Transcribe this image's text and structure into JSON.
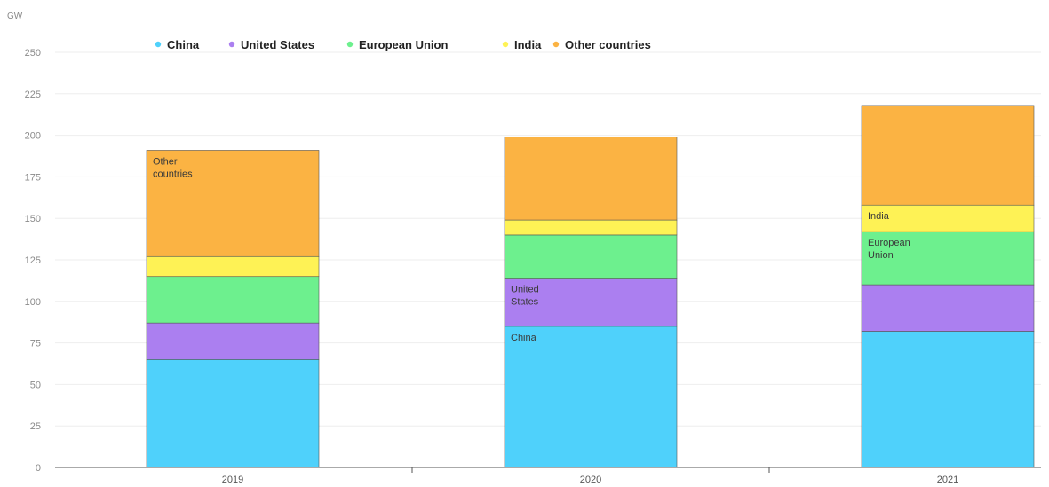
{
  "chart_data": {
    "type": "bar",
    "stacked": true,
    "unit": "GW",
    "categories": [
      "2019",
      "2020",
      "2021"
    ],
    "series": [
      {
        "name": "China",
        "color": "#4fd1fb",
        "values": [
          65,
          85,
          82
        ]
      },
      {
        "name": "United States",
        "color": "#ab7ff0",
        "values": [
          22,
          29,
          28
        ]
      },
      {
        "name": "European Union",
        "color": "#6df08e",
        "values": [
          28,
          26,
          32
        ]
      },
      {
        "name": "India",
        "color": "#fef255",
        "values": [
          12,
          9,
          16
        ]
      },
      {
        "name": "Other countries",
        "color": "#fbb343",
        "values": [
          64,
          50,
          60
        ]
      }
    ],
    "ylim": [
      0,
      250
    ],
    "yticks": [
      0,
      25,
      50,
      75,
      100,
      125,
      150,
      175,
      200,
      225,
      250
    ],
    "legend_position": "top-left",
    "grid": true,
    "annotations": [
      {
        "category": "2019",
        "series": "Other countries",
        "lines": [
          "Other",
          "countries"
        ]
      },
      {
        "category": "2020",
        "series": "United States",
        "lines": [
          "United",
          "States"
        ]
      },
      {
        "category": "2020",
        "series": "China",
        "lines": [
          "China"
        ]
      },
      {
        "category": "2021",
        "series": "India",
        "lines": [
          "India"
        ]
      },
      {
        "category": "2021",
        "series": "European Union",
        "lines": [
          "European",
          "Union"
        ]
      }
    ]
  }
}
